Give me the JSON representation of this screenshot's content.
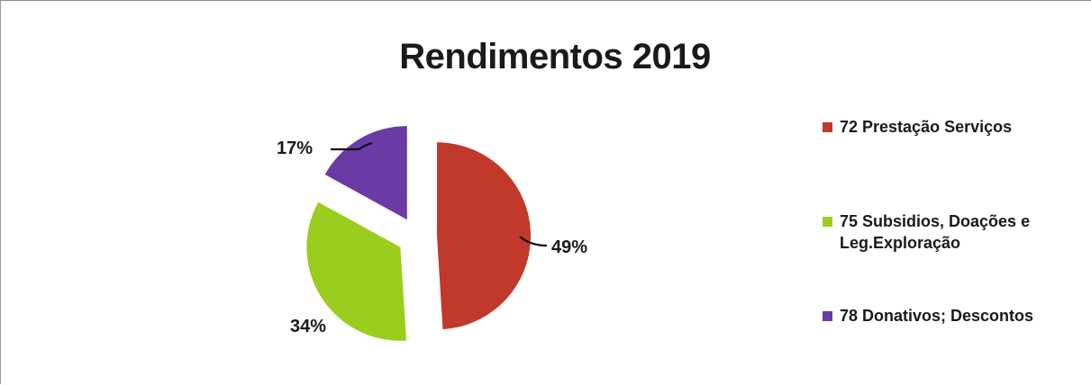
{
  "chart_data": {
    "type": "pie",
    "title": "Rendimentos 2019",
    "categories": [
      "72 Prestação Serviços",
      "75 Subsidios, Doações e Leg.Exploração",
      "78 Donativos; Descontos"
    ],
    "values": [
      49,
      34,
      17
    ],
    "data_labels": [
      "49%",
      "34%",
      "17%"
    ],
    "colors": [
      "#c0392b",
      "#9acd1e",
      "#6a3aa5"
    ],
    "exploded": true,
    "legend_position": "right"
  }
}
